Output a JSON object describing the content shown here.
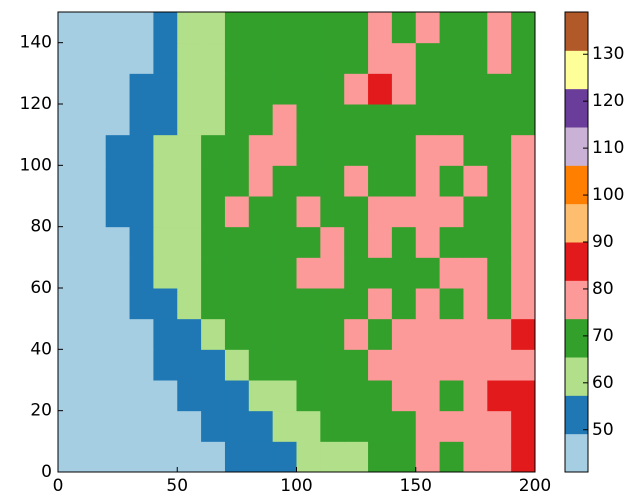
{
  "chart_data": {
    "type": "heatmap",
    "xlim": [
      0,
      200
    ],
    "ylim": [
      0,
      150
    ],
    "xticks": [
      0,
      50,
      100,
      150,
      200
    ],
    "yticks": [
      0,
      20,
      40,
      60,
      80,
      100,
      120,
      140
    ],
    "zlim": [
      41,
      139
    ],
    "cticks": [
      50,
      60,
      70,
      80,
      90,
      100,
      110,
      120,
      130
    ],
    "colormap": [
      "#a6cee3",
      "#1f78b4",
      "#b2df8a",
      "#33a02c",
      "#fb9a99",
      "#e31a1c",
      "#fdbf6f",
      "#ff7f00",
      "#cab2d6",
      "#6a3d9a",
      "#ffff99",
      "#b15928"
    ],
    "z": [
      [
        45,
        45,
        46,
        46,
        47,
        47,
        48,
        50,
        52,
        55,
        58,
        62,
        62,
        66,
        72,
        75,
        72,
        78,
        80,
        82
      ],
      [
        45,
        46,
        47,
        47,
        47,
        48,
        50,
        52,
        55,
        60,
        62,
        66,
        66,
        68,
        72,
        78,
        75,
        80,
        78,
        82
      ],
      [
        45,
        46,
        47,
        47,
        48,
        50,
        52,
        55,
        62,
        65,
        66,
        68,
        68,
        70,
        75,
        80,
        72,
        80,
        82,
        85
      ],
      [
        45,
        45,
        47,
        48,
        50,
        52,
        55,
        62,
        66,
        68,
        70,
        70,
        72,
        74,
        78,
        80,
        75,
        78,
        80,
        78
      ],
      [
        45,
        46,
        47,
        48,
        50,
        55,
        60,
        66,
        70,
        72,
        70,
        70,
        75,
        72,
        74,
        80,
        78,
        75,
        80,
        88
      ],
      [
        45,
        46,
        47,
        50,
        55,
        62,
        66,
        70,
        72,
        70,
        72,
        70,
        72,
        74,
        72,
        74,
        72,
        75,
        72,
        78
      ],
      [
        45,
        46,
        48,
        52,
        60,
        65,
        68,
        70,
        72,
        72,
        75,
        78,
        72,
        70,
        72,
        72,
        76,
        75,
        72,
        76
      ],
      [
        46,
        47,
        48,
        54,
        62,
        65,
        68,
        70,
        72,
        70,
        72,
        75,
        72,
        78,
        72,
        74,
        72,
        70,
        72,
        75
      ],
      [
        46,
        47,
        50,
        55,
        62,
        65,
        68,
        75,
        72,
        70,
        78,
        72,
        72,
        75,
        80,
        76,
        74,
        70,
        72,
        78
      ],
      [
        46,
        47,
        50,
        55,
        60,
        62,
        66,
        72,
        75,
        72,
        70,
        72,
        74,
        70,
        72,
        75,
        72,
        75,
        72,
        74
      ],
      [
        47,
        48,
        50,
        52,
        58,
        62,
        66,
        70,
        76,
        80,
        70,
        72,
        70,
        72,
        72,
        80,
        75,
        72,
        72,
        75
      ],
      [
        46,
        47,
        48,
        50,
        56,
        60,
        64,
        68,
        72,
        75,
        70,
        70,
        72,
        72,
        72,
        70,
        72,
        70,
        70,
        70
      ],
      [
        46,
        46,
        48,
        50,
        55,
        60,
        62,
        66,
        68,
        70,
        70,
        72,
        75,
        82,
        78,
        72,
        70,
        70,
        72,
        70
      ],
      [
        46,
        47,
        48,
        49,
        52,
        60,
        63,
        66,
        68,
        70,
        70,
        72,
        70,
        80,
        80,
        72,
        70,
        72,
        74,
        70
      ],
      [
        47,
        47,
        48,
        48,
        52,
        58,
        62,
        66,
        68,
        68,
        70,
        72,
        70,
        78,
        72,
        74,
        70,
        72,
        75,
        68
      ]
    ]
  }
}
